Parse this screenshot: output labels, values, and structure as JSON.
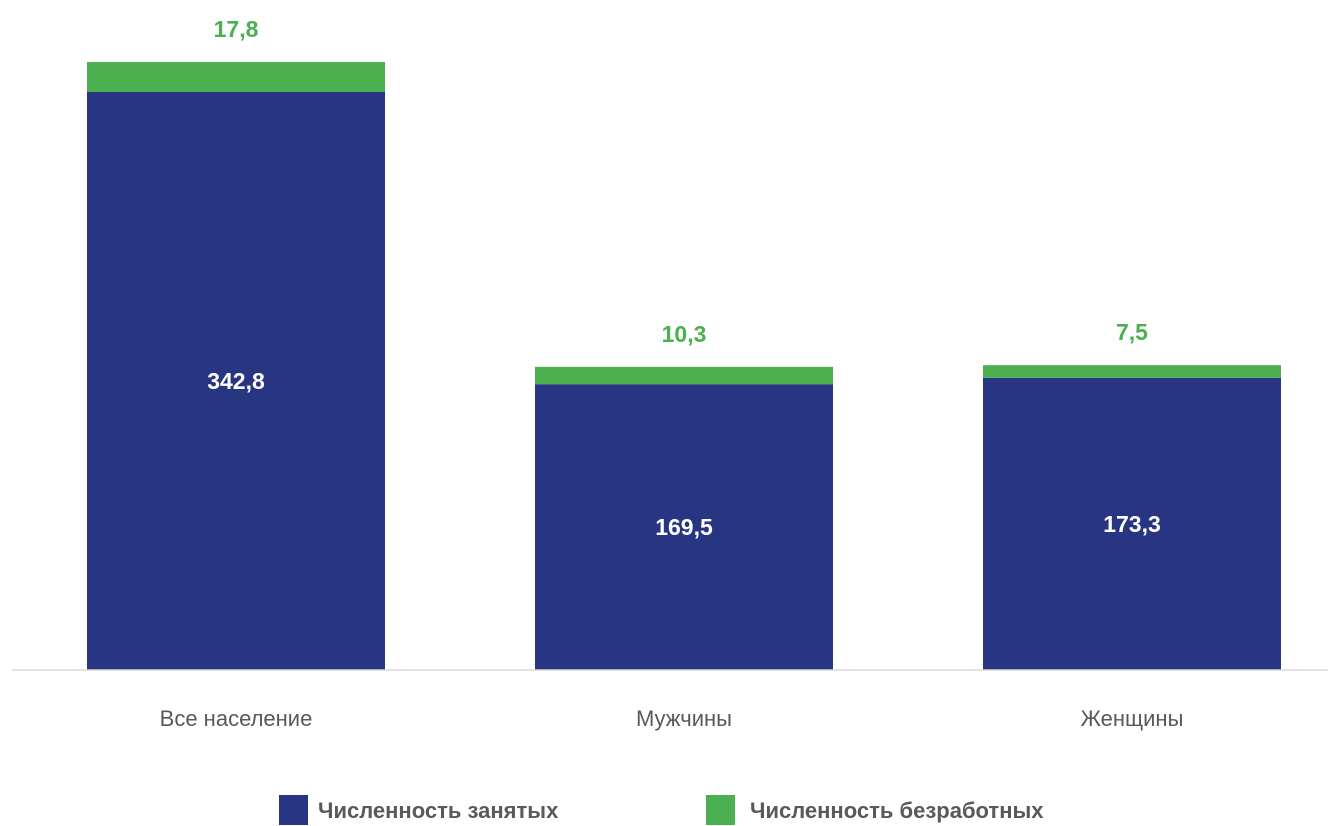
{
  "chart_data": {
    "type": "bar",
    "stacked": true,
    "categories": [
      "Все население",
      "Мужчины",
      "Женщины"
    ],
    "series": [
      {
        "name": "Численность занятых",
        "values": [
          342.8,
          169.5,
          173.3
        ],
        "labels": [
          "342,8",
          "169,5",
          "173,3"
        ],
        "color": "#283583"
      },
      {
        "name": "Численность безработных",
        "values": [
          17.8,
          10.3,
          7.5
        ],
        "labels": [
          "17,8",
          "10,3",
          "7,5"
        ],
        "color": "#4caf50"
      }
    ],
    "title": "",
    "xlabel": "",
    "ylabel": "",
    "ylim": [
      0,
      360.6
    ],
    "grid": false,
    "legend_position": "bottom-center"
  },
  "colors": {
    "employed_label": "#ffffff",
    "unemployed_label": "#4caf50",
    "axis": "#d9d9d9"
  }
}
